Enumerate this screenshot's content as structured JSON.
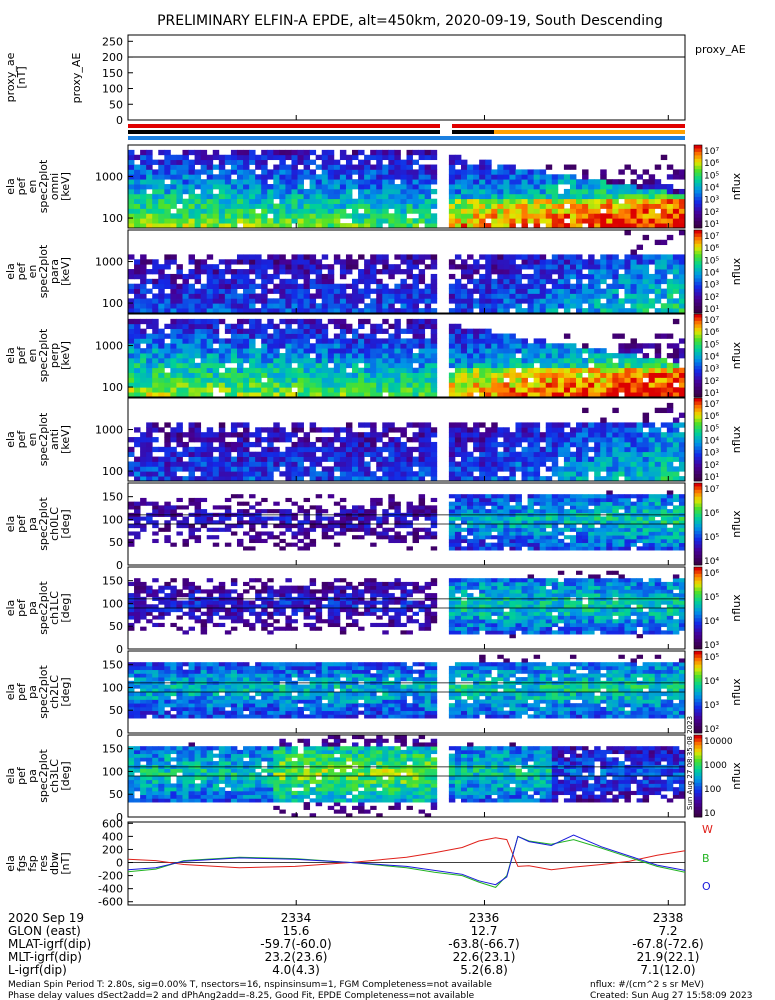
{
  "title": "PRELIMINARY ELFIN-A EPDE, alt=450km, 2020-09-19, South Descending",
  "colors": {
    "w": "#e0201a",
    "b": "#22b422",
    "o": "#1a1adc",
    "red": "#e00000",
    "blue": "#1a7fe0",
    "orange": "#ffa000",
    "black": "#000000"
  },
  "chart_data": [
    {
      "type": "line",
      "ylabel": "proxy_ae\n[nT]",
      "ylim": [
        0,
        270
      ],
      "yticks": [
        0,
        50,
        100,
        150,
        200,
        250
      ],
      "series": [
        {
          "name": "proxy_AE",
          "values": [
            200
          ]
        }
      ]
    },
    {
      "type": "heatmap",
      "ylabel": "ela\npef\nen\nspec2plot\nomni\n[keV]",
      "ticks": [
        "1000",
        "100"
      ],
      "cbar": {
        "label": "nflux",
        "ticks": [
          "10⁷",
          "10⁶",
          "10⁵",
          "10⁴",
          "10³",
          "10²",
          "10¹"
        ],
        "min_exp": 1,
        "max_exp": 7
      },
      "pattern": "energy_omni"
    },
    {
      "type": "heatmap",
      "ylabel": "ela\npef\nen\nspec2plot\npara\n[keV]",
      "ticks": [
        "1000",
        "100"
      ],
      "cbar": {
        "label": "nflux",
        "ticks": [
          "10⁷",
          "10⁶",
          "10⁵",
          "10⁴",
          "10³",
          "10²",
          "10¹"
        ],
        "min_exp": 1,
        "max_exp": 7
      },
      "pattern": "energy_para"
    },
    {
      "type": "heatmap",
      "ylabel": "ela\npef\nen\nspec2plot\nperp\n[keV]",
      "ticks": [
        "1000",
        "100"
      ],
      "cbar": {
        "label": "nflux",
        "ticks": [
          "10⁷",
          "10⁶",
          "10⁵",
          "10⁴",
          "10³",
          "10²",
          "10¹"
        ],
        "min_exp": 1,
        "max_exp": 7
      },
      "pattern": "energy_perp"
    },
    {
      "type": "heatmap",
      "ylabel": "ela\npef\nen\nspec2plot\nanti\n[keV]",
      "ticks": [
        "1000",
        "100"
      ],
      "cbar": {
        "label": "nflux",
        "ticks": [
          "10⁷",
          "10⁶",
          "10⁵",
          "10⁴",
          "10³",
          "10²",
          "10¹"
        ],
        "min_exp": 1,
        "max_exp": 7
      },
      "pattern": "energy_anti"
    },
    {
      "type": "heatmap",
      "ylabel": "ela\npef\npa\nspec2plot\nch0LC\n[deg]",
      "ylim": [
        0,
        180
      ],
      "yticks": [
        0,
        50,
        100,
        150
      ],
      "cbar": {
        "label": "nflux",
        "ticks": [
          "10⁷",
          "10⁶",
          "10⁵",
          "10⁴"
        ],
        "min_exp": 3.5,
        "max_exp": 7
      },
      "pattern": "pa0"
    },
    {
      "type": "heatmap",
      "ylabel": "ela\npef\npa\nspec2plot\nch1LC\n[deg]",
      "ylim": [
        0,
        180
      ],
      "yticks": [
        0,
        50,
        100,
        150
      ],
      "cbar": {
        "label": "nflux",
        "ticks": [
          "10⁶",
          "10⁵",
          "10⁴",
          "10³"
        ],
        "min_exp": 3,
        "max_exp": 6.5
      },
      "pattern": "pa1"
    },
    {
      "type": "heatmap",
      "ylabel": "ela\npef\npa\nspec2plot\nch2LC\n[deg]",
      "ylim": [
        0,
        180
      ],
      "yticks": [
        0,
        50,
        100,
        150
      ],
      "cbar": {
        "label": "nflux",
        "ticks": [
          "10⁵",
          "10⁴",
          "10³",
          "10²"
        ],
        "min_exp": 2,
        "max_exp": 5.6
      },
      "pattern": "pa2"
    },
    {
      "type": "heatmap",
      "ylabel": "ela\npef\npa\nspec2plot\nch3LC\n[deg]",
      "ylim": [
        0,
        180
      ],
      "yticks": [
        0,
        50,
        100,
        150
      ],
      "cbar": {
        "label": "nflux",
        "ticks": [
          "10000",
          "1000",
          "100",
          "10"
        ],
        "min_exp": 1,
        "max_exp": 4.2
      },
      "pattern": "pa3"
    },
    {
      "type": "line",
      "ylabel": "ela\nfgs\nfsp\nres\ndbw\n[nT]",
      "ylim": [
        -650,
        620
      ],
      "yticks": [
        -600,
        -400,
        -200,
        0,
        200,
        400,
        600
      ],
      "legend": [
        "W",
        "B",
        "O"
      ],
      "series": [
        {
          "name": "W",
          "x": [
            0,
            0.05,
            0.1,
            0.2,
            0.3,
            0.4,
            0.5,
            0.55,
            0.6,
            0.63,
            0.66,
            0.68,
            0.7,
            0.72,
            0.76,
            0.8,
            0.85,
            0.9,
            0.95,
            1.0
          ],
          "values": [
            50,
            30,
            -30,
            -80,
            -60,
            0,
            80,
            150,
            230,
            330,
            380,
            350,
            -60,
            -50,
            -110,
            -70,
            -30,
            20,
            110,
            180
          ]
        },
        {
          "name": "B",
          "x": [
            0,
            0.05,
            0.1,
            0.2,
            0.3,
            0.4,
            0.5,
            0.55,
            0.6,
            0.63,
            0.66,
            0.68,
            0.7,
            0.72,
            0.76,
            0.8,
            0.85,
            0.9,
            0.95,
            1.0
          ],
          "values": [
            -140,
            -100,
            30,
            80,
            60,
            0,
            -80,
            -150,
            -200,
            -300,
            -380,
            -200,
            400,
            330,
            280,
            350,
            220,
            80,
            -60,
            -150
          ]
        },
        {
          "name": "O",
          "x": [
            0,
            0.05,
            0.1,
            0.2,
            0.3,
            0.4,
            0.5,
            0.55,
            0.6,
            0.63,
            0.66,
            0.68,
            0.7,
            0.72,
            0.76,
            0.8,
            0.85,
            0.9,
            0.95,
            1.0
          ],
          "values": [
            -110,
            -80,
            20,
            70,
            50,
            0,
            -60,
            -120,
            -180,
            -280,
            -340,
            -220,
            400,
            320,
            260,
            420,
            240,
            100,
            -40,
            -120
          ]
        }
      ]
    }
  ],
  "time_axis": [
    "2334",
    "2336",
    "2338"
  ],
  "footer_rows": [
    {
      "label": "2020 Sep 19",
      "v": [
        "2334",
        "2336",
        "2338"
      ]
    },
    {
      "label": "GLON (east)",
      "v": [
        "15.6",
        "12.7",
        "7.2"
      ]
    },
    {
      "label": "MLAT-igrf(dip)",
      "v": [
        "-59.7(-60.0)",
        "-63.8(-66.7)",
        "-67.8(-72.6)"
      ]
    },
    {
      "label": "MLT-igrf(dip)",
      "v": [
        "23.2(23.6)",
        "22.6(23.1)",
        "21.9(22.1)"
      ]
    },
    {
      "label": "L-igrf(dip)",
      "v": [
        "4.0(4.3)",
        "5.2(6.8)",
        "7.1(12.0)"
      ]
    }
  ],
  "notes": {
    "line1_left": "Median Spin Period T: 2.80s, sig=0.00% T, nsectors=16, nspinsinsum=1, FGM Completeness=not available",
    "line2_left": "Phase delay values dSect2add=2 and dPhAng2add=-8.25, Good Fit, EPDE Completeness=not available",
    "line1_right": "nflux: #/(cm^2 s sr MeV)",
    "line2_right": "Created: Sun Aug 27 15:58:09 2023",
    "side_stamp": "Sun Aug 27 08:35:08 2023"
  }
}
